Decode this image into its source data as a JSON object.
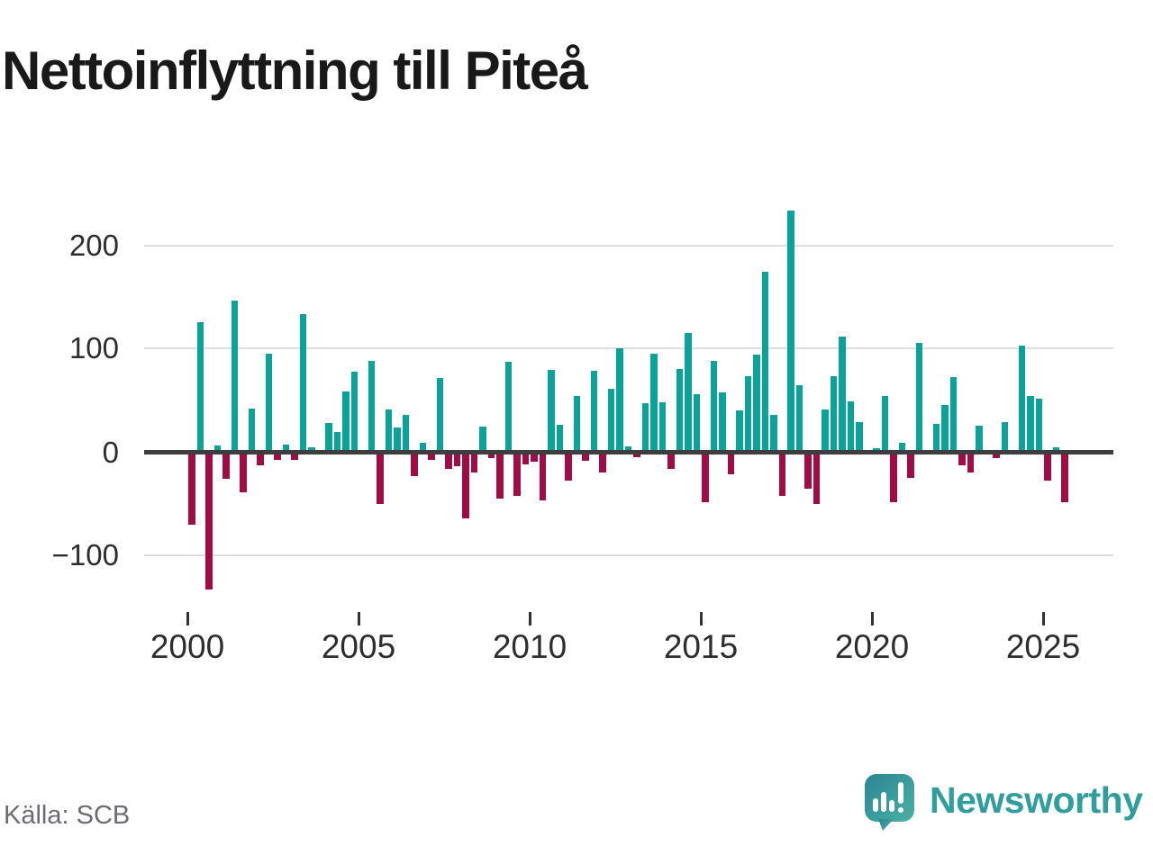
{
  "title": "Nettoinflyttning till Piteå",
  "source": "Källa: SCB",
  "brand": {
    "name": "Newsworthy"
  },
  "colors": {
    "positive": "#0ba29a",
    "negative": "#a00d46",
    "axis_line": "#3d3d3d",
    "gridline": "#dedede",
    "title_text": "#191919",
    "tick_text": "#2d2d2d",
    "source_text": "#6b6b74",
    "brand_teal": "#2f9e9d"
  },
  "chart_data": {
    "type": "bar",
    "title": "Nettoinflyttning till Piteå",
    "frequency": "quarterly",
    "x_start": {
      "year": 2000,
      "quarter": 1
    },
    "x_end": {
      "year": 2025,
      "quarter": 3
    },
    "values": [
      -70,
      126,
      -132,
      7,
      -25,
      147,
      -38,
      43,
      -12,
      96,
      -7,
      8,
      -7,
      134,
      5,
      0,
      29,
      20,
      59,
      78,
      0,
      89,
      -50,
      42,
      24,
      37,
      -23,
      10,
      -7,
      72,
      -16,
      -13,
      -64,
      -19,
      25,
      -5,
      -44,
      88,
      -42,
      -11,
      -9,
      -46,
      80,
      27,
      -27,
      55,
      -8,
      79,
      -19,
      62,
      101,
      6,
      -4,
      48,
      96,
      49,
      -16,
      81,
      116,
      57,
      -48,
      89,
      58,
      -21,
      41,
      74,
      95,
      175,
      37,
      -42,
      234,
      65,
      -35,
      -50,
      42,
      74,
      112,
      50,
      30,
      0,
      4,
      55,
      -48,
      10,
      -24,
      106,
      0,
      28,
      46,
      73,
      -12,
      -19,
      26,
      0,
      -5,
      30,
      0,
      104,
      55,
      52,
      -27,
      5,
      -48
    ],
    "y_ticks": [
      200,
      100,
      0,
      -100
    ],
    "y_tick_labels": [
      "200",
      "100",
      "0",
      "−100"
    ],
    "x_tick_years": [
      2000,
      2005,
      2010,
      2015,
      2020,
      2025
    ],
    "x_tick_labels": [
      "2000",
      "2005",
      "2010",
      "2015",
      "2020",
      "2025"
    ],
    "ylim": [
      -150,
      250
    ],
    "xlabel": "",
    "ylabel": "",
    "legend": "none",
    "grid": "horizontal"
  }
}
